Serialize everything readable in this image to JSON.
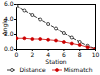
{
  "chart_data": {
    "type": "line",
    "x_label": "Station",
    "y_label": "Angle",
    "x": [
      0,
      1,
      2,
      3,
      4,
      5,
      6,
      7,
      8,
      9,
      10
    ],
    "series": [
      {
        "name": "Distance",
        "color": "#000000",
        "marker": "open circle",
        "line_style": "dashed",
        "values": [
          5.8,
          5.2,
          4.6,
          4.0,
          3.4,
          2.8,
          2.2,
          1.6,
          1.0,
          0.5,
          0.1
        ]
      },
      {
        "name": "Mismatch",
        "color": "#cc0000",
        "marker": "dot",
        "line_style": "solid",
        "values": [
          1.5,
          1.5,
          1.4,
          1.4,
          1.3,
          1.2,
          1.0,
          0.8,
          0.6,
          0.3,
          0.1
        ]
      }
    ],
    "xlim": [
      0,
      10
    ],
    "xticks": [
      0,
      2,
      4,
      6,
      8,
      10
    ],
    "ylim": [
      0,
      6
    ],
    "yticks": [
      0,
      2,
      4,
      6
    ],
    "legend": "bottom",
    "grid": false
  }
}
